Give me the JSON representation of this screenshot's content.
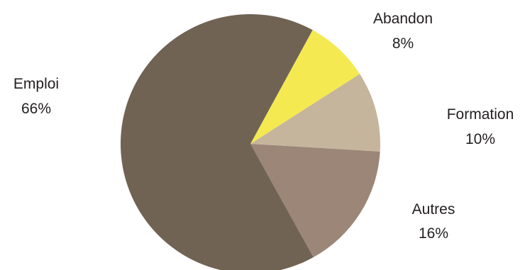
{
  "chart_data": {
    "type": "pie",
    "slices": [
      {
        "label": "Abandon",
        "value": 8,
        "display": "8%",
        "color": "#f4e951"
      },
      {
        "label": "Formation",
        "value": 10,
        "display": "10%",
        "color": "#c5b59c"
      },
      {
        "label": "Autres",
        "value": 16,
        "display": "16%",
        "color": "#9c8678"
      },
      {
        "label": "Emploi",
        "value": 66,
        "display": "66%",
        "color": "#706354"
      }
    ],
    "start": "top, clockwise",
    "legend": "none (labels beside slices)"
  }
}
